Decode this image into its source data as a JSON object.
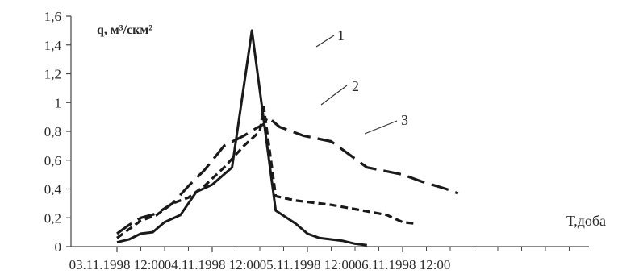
{
  "chart_data": {
    "type": "line",
    "ylabel": "q, м³/скм²",
    "xlabel": "Т,доба",
    "ylim": [
      0,
      1.6
    ],
    "xlim": [
      "03.11.1998 12:00",
      "06.11.1998 14:00"
    ],
    "y_ticks": [
      "0",
      "0,2",
      "0,4",
      "0,6",
      "0,8",
      "1",
      "1,2",
      "1,4",
      "1,6"
    ],
    "x_ticks": [
      "03.11.1998 12:00",
      "04.11.1998 12:00",
      "05.11.1998 12:00",
      "06.11.1998 12:00"
    ],
    "grid": false,
    "legend": "none",
    "series": [
      {
        "name": "1",
        "style": "solid",
        "points": [
          [
            "03.11.1998 12:00",
            0.03
          ],
          [
            "03.11.1998 15:00",
            0.05
          ],
          [
            "03.11.1998 18:00",
            0.09
          ],
          [
            "03.11.1998 21:00",
            0.1
          ],
          [
            "04.11.1998 00:00",
            0.17
          ],
          [
            "04.11.1998 04:00",
            0.22
          ],
          [
            "04.11.1998 08:00",
            0.38
          ],
          [
            "04.11.1998 12:00",
            0.43
          ],
          [
            "04.11.1998 17:00",
            0.55
          ],
          [
            "04.11.1998 22:00",
            1.5
          ],
          [
            "05.11.1998 04:00",
            0.25
          ],
          [
            "05.11.1998 09:00",
            0.16
          ],
          [
            "05.11.1998 12:00",
            0.09
          ],
          [
            "05.11.1998 15:00",
            0.06
          ],
          [
            "05.11.1998 21:00",
            0.04
          ],
          [
            "06.11.1998 00:00",
            0.02
          ],
          [
            "06.11.1998 03:00",
            0.01
          ]
        ]
      },
      {
        "name": "2",
        "style": "short-dash",
        "points": [
          [
            "03.11.1998 12:00",
            0.06
          ],
          [
            "03.11.1998 15:00",
            0.12
          ],
          [
            "03.11.1998 18:00",
            0.18
          ],
          [
            "03.11.1998 22:00",
            0.22
          ],
          [
            "04.11.1998 02:00",
            0.3
          ],
          [
            "04.11.1998 06:00",
            0.34
          ],
          [
            "04.11.1998 10:00",
            0.42
          ],
          [
            "04.11.1998 15:00",
            0.55
          ],
          [
            "04.11.1998 20:00",
            0.7
          ],
          [
            "05.11.1998 00:00",
            0.8
          ],
          [
            "05.11.1998 01:00",
            0.97
          ],
          [
            "05.11.1998 04:00",
            0.35
          ],
          [
            "05.11.1998 09:00",
            0.32
          ],
          [
            "05.11.1998 18:00",
            0.29
          ],
          [
            "06.11.1998 00:00",
            0.26
          ],
          [
            "06.11.1998 08:00",
            0.22
          ],
          [
            "06.11.1998 12:00",
            0.17
          ],
          [
            "06.11.1998 15:00",
            0.16
          ]
        ]
      },
      {
        "name": "3",
        "style": "long-dash",
        "points": [
          [
            "03.11.1998 12:00",
            0.09
          ],
          [
            "03.11.1998 15:00",
            0.15
          ],
          [
            "03.11.1998 18:00",
            0.2
          ],
          [
            "03.11.1998 22:00",
            0.23
          ],
          [
            "04.11.1998 02:00",
            0.3
          ],
          [
            "04.11.1998 06:00",
            0.42
          ],
          [
            "04.11.1998 10:00",
            0.53
          ],
          [
            "04.11.1998 15:00",
            0.7
          ],
          [
            "04.11.1998 20:00",
            0.77
          ],
          [
            "04.11.1998 23:00",
            0.82
          ],
          [
            "05.11.1998 01:00",
            0.85
          ],
          [
            "05.11.1998 02:00",
            0.9
          ],
          [
            "05.11.1998 05:00",
            0.83
          ],
          [
            "05.11.1998 11:00",
            0.77
          ],
          [
            "05.11.1998 18:00",
            0.73
          ],
          [
            "05.11.1998 22:00",
            0.65
          ],
          [
            "06.11.1998 03:00",
            0.55
          ],
          [
            "06.11.1998 12:00",
            0.5
          ],
          [
            "06.11.1998 17:00",
            0.45
          ],
          [
            "06.11.1998 23:00",
            0.4
          ],
          [
            "07.11.1998 02:00",
            0.37
          ]
        ]
      }
    ]
  }
}
